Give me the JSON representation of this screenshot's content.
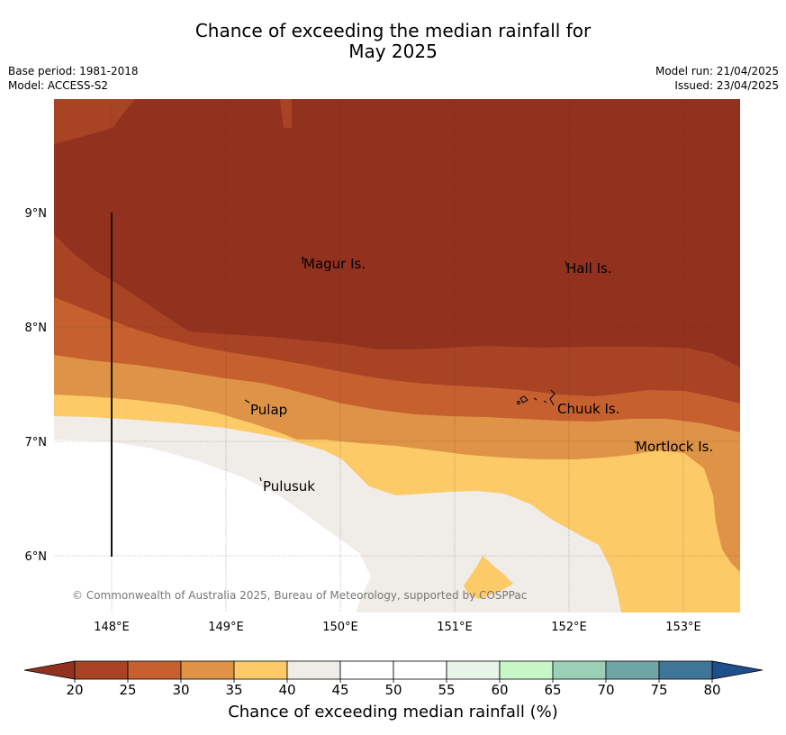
{
  "title_line1": "Chance of exceeding the median rainfall for",
  "title_line2": "May 2025",
  "meta": {
    "base_period": "Base period: 1981-2018",
    "model": "Model: ACCESS-S2",
    "model_run": "Model run: 21/04/2025",
    "issued": "Issued: 23/04/2025"
  },
  "map": {
    "lon_ticks": [
      "148°E",
      "149°E",
      "150°E",
      "151°E",
      "152°E",
      "153°E"
    ],
    "lat_ticks": [
      "9°N",
      "8°N",
      "7°N",
      "6°N"
    ],
    "places": [
      {
        "name": "Magur Is."
      },
      {
        "name": "Hall Is."
      },
      {
        "name": "Pulap"
      },
      {
        "name": "Chuuk Is."
      },
      {
        "name": "Mortlock Is."
      },
      {
        "name": "Pulusuk"
      }
    ],
    "copyright": "© Commonwealth of Australia 2025, Bureau of Meteorology, supported by COSPPac"
  },
  "colorbar": {
    "label": "Chance of exceeding median rainfall (%)",
    "ticks": [
      "20",
      "25",
      "30",
      "35",
      "40",
      "45",
      "50",
      "55",
      "60",
      "65",
      "70",
      "75",
      "80"
    ],
    "colors": [
      "#a84424",
      "#c6612f",
      "#de9346",
      "#fdca68",
      "#f0ece7",
      "#ffffff",
      "#ffffff",
      "#e8f4e8",
      "#c8f7c7",
      "#9bd0b7",
      "#6fa5a5",
      "#3f7698"
    ],
    "under_color": "#93311f",
    "over_color": "#1d4f8d"
  }
}
